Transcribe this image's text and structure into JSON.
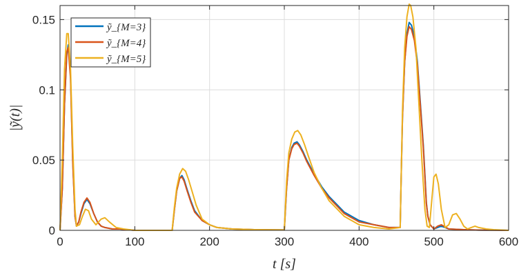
{
  "chart_data": {
    "type": "line",
    "xlabel": "t [s]",
    "ylabel": "|ỹ(t)|",
    "xlim": [
      0,
      600
    ],
    "ylim": [
      0,
      0.16
    ],
    "xticks": [
      "0",
      "100",
      "200",
      "300",
      "400",
      "500",
      "600"
    ],
    "yticks": [
      "0",
      "0.05",
      "0.1",
      "0.15"
    ],
    "grid": true,
    "legend_position": "top-left",
    "series": [
      {
        "name": "ỹ_{M=3}",
        "color": "#0072BD",
        "x": [
          0,
          3,
          6,
          9,
          11,
          14,
          17,
          20,
          22,
          25,
          28,
          32,
          36,
          40,
          45,
          50,
          55,
          60,
          70,
          80,
          100,
          150,
          151,
          153,
          156,
          160,
          163,
          166,
          170,
          175,
          180,
          190,
          200,
          210,
          230,
          260,
          300,
          301,
          303,
          306,
          310,
          313,
          317,
          320,
          325,
          330,
          340,
          350,
          360,
          380,
          400,
          420,
          440,
          455,
          456,
          458,
          461,
          464,
          467,
          470,
          474,
          478,
          482,
          486,
          488,
          490,
          492,
          495,
          500,
          505,
          510,
          520,
          540,
          560,
          600
        ],
        "y": [
          0,
          0.03,
          0.09,
          0.125,
          0.132,
          0.11,
          0.05,
          0.01,
          0.003,
          0.006,
          0.012,
          0.019,
          0.022,
          0.019,
          0.012,
          0.006,
          0.003,
          0.002,
          0.001,
          0.001,
          0,
          0,
          0.005,
          0.015,
          0.028,
          0.037,
          0.039,
          0.036,
          0.029,
          0.021,
          0.014,
          0.007,
          0.004,
          0.002,
          0.001,
          0.0005,
          0.0003,
          0.01,
          0.03,
          0.05,
          0.059,
          0.062,
          0.063,
          0.061,
          0.056,
          0.05,
          0.04,
          0.031,
          0.024,
          0.013,
          0.007,
          0.004,
          0.002,
          0.002,
          0.03,
          0.08,
          0.12,
          0.14,
          0.148,
          0.146,
          0.138,
          0.12,
          0.09,
          0.06,
          0.04,
          0.02,
          0.01,
          0.004,
          0.001,
          0.002,
          0.003,
          0.001,
          0.0005,
          0.0002,
          0
        ]
      },
      {
        "name": "ỹ_{M=4}",
        "color": "#D95319",
        "x": [
          0,
          3,
          6,
          9,
          11,
          14,
          17,
          20,
          22,
          25,
          28,
          32,
          36,
          40,
          45,
          50,
          55,
          60,
          70,
          80,
          100,
          150,
          151,
          153,
          156,
          160,
          163,
          166,
          170,
          175,
          180,
          190,
          200,
          210,
          230,
          260,
          300,
          301,
          303,
          306,
          310,
          313,
          317,
          320,
          325,
          330,
          340,
          350,
          360,
          380,
          400,
          420,
          440,
          455,
          456,
          458,
          461,
          464,
          467,
          470,
          474,
          478,
          482,
          486,
          488,
          490,
          492,
          495,
          500,
          505,
          510,
          520,
          540,
          560,
          600
        ],
        "y": [
          0,
          0.03,
          0.09,
          0.127,
          0.13,
          0.108,
          0.048,
          0.01,
          0.003,
          0.006,
          0.013,
          0.02,
          0.023,
          0.02,
          0.012,
          0.006,
          0.003,
          0.002,
          0.001,
          0.001,
          0,
          0,
          0.005,
          0.015,
          0.028,
          0.037,
          0.038,
          0.035,
          0.028,
          0.02,
          0.013,
          0.007,
          0.004,
          0.002,
          0.001,
          0.0005,
          0.0003,
          0.01,
          0.03,
          0.05,
          0.058,
          0.061,
          0.062,
          0.06,
          0.055,
          0.049,
          0.039,
          0.03,
          0.023,
          0.012,
          0.006,
          0.004,
          0.002,
          0.002,
          0.03,
          0.08,
          0.12,
          0.138,
          0.145,
          0.143,
          0.135,
          0.118,
          0.088,
          0.058,
          0.038,
          0.019,
          0.01,
          0.004,
          0.001,
          0.003,
          0.004,
          0.001,
          0.0005,
          0.0002,
          0
        ]
      },
      {
        "name": "ỹ_{M=5}",
        "color": "#EDB120",
        "x": [
          0,
          3,
          6,
          9,
          11,
          14,
          17,
          20,
          22,
          26,
          30,
          34,
          38,
          42,
          48,
          55,
          60,
          66,
          75,
          85,
          100,
          150,
          151,
          153,
          156,
          160,
          164,
          168,
          172,
          177,
          182,
          190,
          200,
          210,
          230,
          260,
          300,
          301,
          303,
          306,
          310,
          314,
          318,
          322,
          327,
          332,
          340,
          350,
          360,
          380,
          400,
          420,
          440,
          455,
          456,
          458,
          461,
          464,
          467,
          469,
          472,
          476,
          480,
          484,
          488,
          491,
          494,
          497,
          500,
          503,
          506,
          510,
          515,
          520,
          525,
          530,
          535,
          540,
          545,
          550,
          555,
          560,
          570,
          580,
          600
        ],
        "y": [
          0,
          0.05,
          0.115,
          0.14,
          0.14,
          0.115,
          0.06,
          0.015,
          0.003,
          0.004,
          0.01,
          0.015,
          0.014,
          0.008,
          0.004,
          0.008,
          0.009,
          0.006,
          0.002,
          0.001,
          0,
          0,
          0.006,
          0.017,
          0.03,
          0.04,
          0.044,
          0.042,
          0.036,
          0.027,
          0.018,
          0.008,
          0.004,
          0.002,
          0.001,
          0.0005,
          0.0003,
          0.012,
          0.035,
          0.055,
          0.065,
          0.07,
          0.071,
          0.068,
          0.061,
          0.053,
          0.041,
          0.03,
          0.021,
          0.01,
          0.004,
          0.002,
          0.001,
          0.002,
          0.03,
          0.085,
          0.13,
          0.152,
          0.161,
          0.16,
          0.152,
          0.13,
          0.09,
          0.05,
          0.015,
          0.003,
          0.002,
          0.02,
          0.038,
          0.04,
          0.033,
          0.015,
          0.002,
          0.004,
          0.011,
          0.012,
          0.008,
          0.003,
          0.001,
          0.002,
          0.003,
          0.002,
          0.001,
          0.0005,
          0
        ]
      }
    ]
  }
}
